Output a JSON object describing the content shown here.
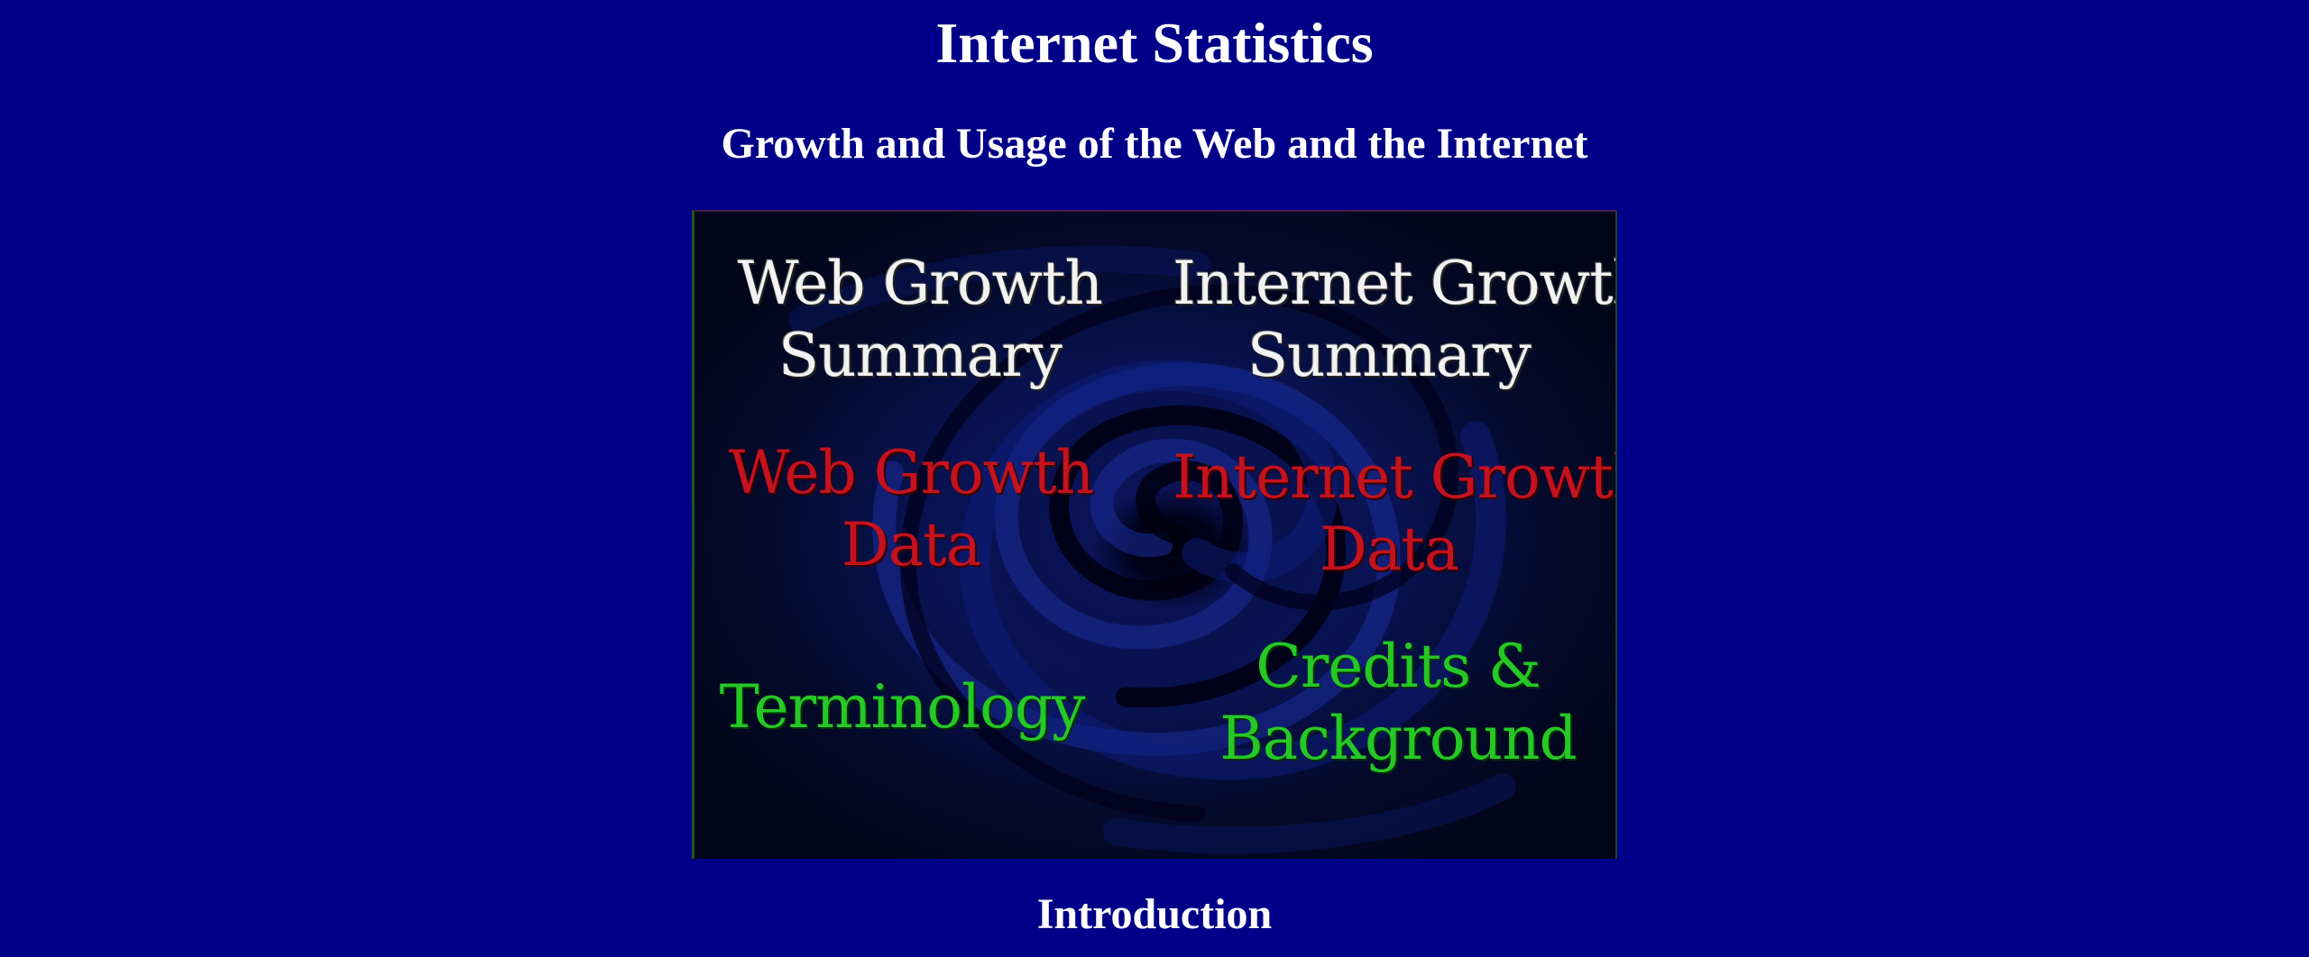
{
  "header": {
    "title": "Internet Statistics",
    "subtitle": "Growth and Usage of the Web and the Internet"
  },
  "image_map": {
    "web_growth_summary": [
      "Web Growth",
      "Summary"
    ],
    "internet_growth_summary": [
      "Internet Growth",
      "Summary"
    ],
    "web_growth_data": [
      "Web Growth",
      "Data"
    ],
    "internet_growth_data": [
      "Internet Growth",
      "Data"
    ],
    "terminology": "Terminology",
    "credits_background": [
      "Credits &",
      "Background"
    ],
    "colors": {
      "summary": "#f2f2f2",
      "data": "#c4121e",
      "other": "#26c826"
    }
  },
  "section": {
    "heading": "Introduction"
  },
  "page": {
    "background": "#000088"
  }
}
